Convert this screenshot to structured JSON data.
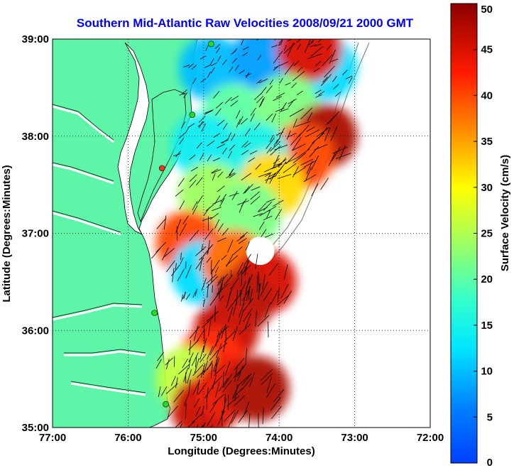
{
  "chart_data": {
    "type": "heatmap",
    "title": "Southern Mid-Atlantic Raw Velocities 2008/09/21 2000 GMT",
    "xlabel": "Longitude (Degrees:Minutes)",
    "ylabel": "Latitude (Degrees:Minutes)",
    "colorbar_label": "Surface Velocity (cm/s)",
    "x_ticks": [
      {
        "value": -77,
        "label": "77:00"
      },
      {
        "value": -76,
        "label": "76:00"
      },
      {
        "value": -75,
        "label": "75:00"
      },
      {
        "value": -74,
        "label": "74:00"
      },
      {
        "value": -73,
        "label": "73:00"
      },
      {
        "value": -72,
        "label": "72:00"
      }
    ],
    "y_ticks": [
      {
        "value": 35,
        "label": "35:00"
      },
      {
        "value": 36,
        "label": "36:00"
      },
      {
        "value": 37,
        "label": "37:00"
      },
      {
        "value": 38,
        "label": "38:00"
      },
      {
        "value": 39,
        "label": "39:00"
      }
    ],
    "xlim": [
      -77,
      -72
    ],
    "ylim": [
      35,
      39
    ],
    "colorbar": {
      "range": [
        0,
        50
      ],
      "ticks": [
        {
          "value": 0,
          "label": "0"
        },
        {
          "value": 5,
          "label": "5"
        },
        {
          "value": 10,
          "label": "10"
        },
        {
          "value": 15,
          "label": "15"
        },
        {
          "value": 20,
          "label": "20"
        },
        {
          "value": 25,
          "label": "25"
        },
        {
          "value": 30,
          "label": "30"
        },
        {
          "value": 35,
          "label": "35"
        },
        {
          "value": 40,
          "label": "40"
        },
        {
          "value": 45,
          "label": "45"
        },
        {
          "value": 50,
          "label": "50"
        }
      ],
      "colormap": "jet"
    },
    "grid": "dotted",
    "land_color": "#5ff5a8",
    "velocity_regions": [
      {
        "lon": -74.9,
        "lat": 38.7,
        "speed": 10
      },
      {
        "lon": -74.2,
        "lat": 38.8,
        "speed": 8
      },
      {
        "lon": -73.4,
        "lat": 38.7,
        "speed": 12
      },
      {
        "lon": -73.6,
        "lat": 38.9,
        "speed": 45
      },
      {
        "lon": -74.6,
        "lat": 38.2,
        "speed": 20
      },
      {
        "lon": -73.9,
        "lat": 38.3,
        "speed": 22
      },
      {
        "lon": -73.4,
        "lat": 38.0,
        "speed": 48
      },
      {
        "lon": -73.7,
        "lat": 37.8,
        "speed": 40
      },
      {
        "lon": -75.0,
        "lat": 37.9,
        "speed": 14
      },
      {
        "lon": -74.3,
        "lat": 37.8,
        "speed": 15
      },
      {
        "lon": -74.1,
        "lat": 37.5,
        "speed": 32
      },
      {
        "lon": -74.9,
        "lat": 37.4,
        "speed": 24
      },
      {
        "lon": -74.4,
        "lat": 37.2,
        "speed": 22
      },
      {
        "lon": -75.2,
        "lat": 36.9,
        "speed": 40
      },
      {
        "lon": -75.0,
        "lat": 36.6,
        "speed": 12
      },
      {
        "lon": -74.6,
        "lat": 36.7,
        "speed": 38
      },
      {
        "lon": -74.2,
        "lat": 36.5,
        "speed": 45
      },
      {
        "lon": -74.5,
        "lat": 36.3,
        "speed": 47
      },
      {
        "lon": -74.7,
        "lat": 36.0,
        "speed": 46
      },
      {
        "lon": -74.9,
        "lat": 35.7,
        "speed": 42
      },
      {
        "lon": -75.2,
        "lat": 35.5,
        "speed": 26
      },
      {
        "lon": -75.0,
        "lat": 35.2,
        "speed": 46
      },
      {
        "lon": -74.7,
        "lat": 35.4,
        "speed": 44
      },
      {
        "lon": -74.3,
        "lat": 35.4,
        "speed": 48
      }
    ],
    "gaps": [
      {
        "lon": -74.25,
        "lat": 36.82,
        "speed": null
      }
    ],
    "stations": [
      {
        "lon": -74.9,
        "lat": 38.95,
        "status": "active"
      },
      {
        "lon": -75.15,
        "lat": 38.22,
        "status": "active"
      },
      {
        "lon": -75.55,
        "lat": 37.67,
        "status": "inactive"
      },
      {
        "lon": -75.65,
        "lat": 36.18,
        "status": "active"
      },
      {
        "lon": -75.5,
        "lat": 35.24,
        "status": "active"
      }
    ]
  }
}
